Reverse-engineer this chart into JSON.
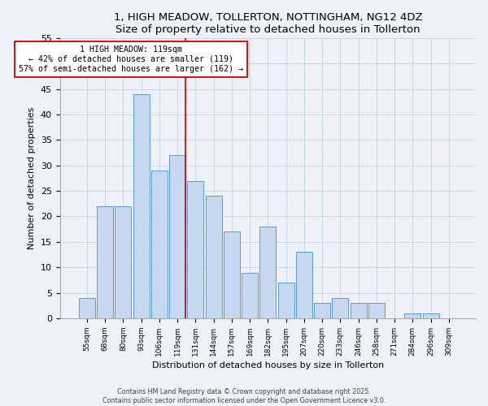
{
  "title": "1, HIGH MEADOW, TOLLERTON, NOTTINGHAM, NG12 4DZ",
  "subtitle": "Size of property relative to detached houses in Tollerton",
  "xlabel": "Distribution of detached houses by size in Tollerton",
  "ylabel": "Number of detached properties",
  "categories": [
    "55sqm",
    "68sqm",
    "80sqm",
    "93sqm",
    "106sqm",
    "119sqm",
    "131sqm",
    "144sqm",
    "157sqm",
    "169sqm",
    "182sqm",
    "195sqm",
    "207sqm",
    "220sqm",
    "233sqm",
    "246sqm",
    "258sqm",
    "271sqm",
    "284sqm",
    "296sqm",
    "309sqm"
  ],
  "values": [
    4,
    22,
    22,
    44,
    29,
    32,
    27,
    24,
    17,
    9,
    18,
    7,
    13,
    3,
    4,
    3,
    3,
    0,
    1,
    1,
    0
  ],
  "bar_color": "#c5d8f0",
  "bar_edge_color": "#5b9bd5",
  "highlight_index": 5,
  "highlight_line_color": "#cc0000",
  "annotation_line1": "1 HIGH MEADOW: 119sqm",
  "annotation_line2": "← 42% of detached houses are smaller (119)",
  "annotation_line3": "57% of semi-detached houses are larger (162) →",
  "annotation_box_color": "#ffffff",
  "annotation_box_edge": "#cc0000",
  "ylim": [
    0,
    55
  ],
  "yticks": [
    0,
    5,
    10,
    15,
    20,
    25,
    30,
    35,
    40,
    45,
    50,
    55
  ],
  "grid_color": "#c8d8e8",
  "background_color": "#eef2f8",
  "footer_line1": "Contains HM Land Registry data © Crown copyright and database right 2025.",
  "footer_line2": "Contains public sector information licensed under the Open Government Licence v3.0."
}
